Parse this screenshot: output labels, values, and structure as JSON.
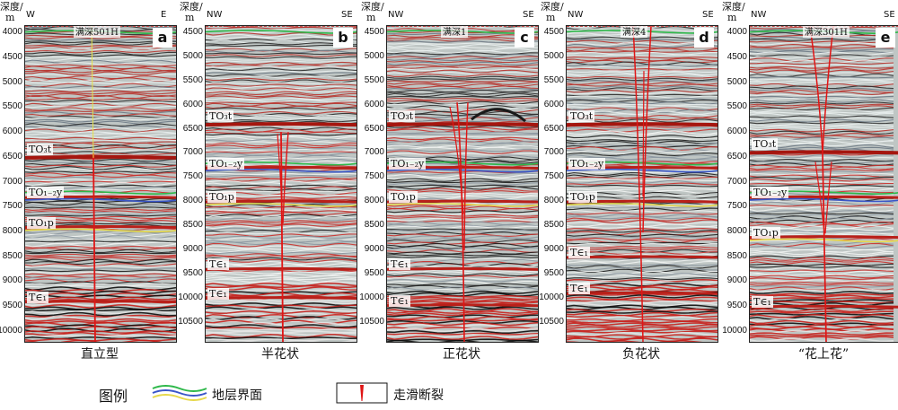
{
  "legend": {
    "title": "图例",
    "horizon_label": "地层界面",
    "fault_label": "走滑断裂",
    "colors": {
      "green": "#2eb84a",
      "blue": "#3a56c8",
      "yellow": "#e6d84a",
      "fault": "#e01515"
    }
  },
  "panels": [
    {
      "letter": "a",
      "dir_left": "W",
      "dir_right": "E",
      "well": "满深501H",
      "caption": "直立型",
      "y_title": "深度/",
      "y_unit": "m",
      "ticks": [
        "4000",
        "4500",
        "5000",
        "5500",
        "6000",
        "6500",
        "7000",
        "7500",
        "8000",
        "8500",
        "9000",
        "9500",
        "10000"
      ],
      "depth_range": [
        3850,
        10200
      ],
      "horizons": [
        {
          "label": "TO₃t",
          "depth": 6500
        },
        {
          "label": "TO₁₋₂y",
          "depth": 7300
        },
        {
          "label": "TO₁p",
          "depth": 7900
        },
        {
          "label": "T∈₁",
          "depth": 9400
        }
      ],
      "style": "vertical"
    },
    {
      "letter": "b",
      "dir_left": "NW",
      "dir_right": "SE",
      "well": "",
      "caption": "半花状",
      "y_title": "深度/",
      "y_unit": "m",
      "ticks": [
        "4500",
        "5000",
        "5500",
        "6000",
        "6500",
        "7000",
        "7500",
        "8000",
        "8500",
        "9000",
        "9500",
        "10000",
        "10500"
      ],
      "depth_range": [
        4350,
        10900
      ],
      "horizons": [
        {
          "label": "TO₃t",
          "depth": 6400
        },
        {
          "label": "TO₁₋₂y",
          "depth": 7300
        },
        {
          "label": "TO₁p",
          "depth": 8000
        },
        {
          "label": "T∈₁",
          "depth": 9400
        },
        {
          "label": "T∈₁",
          "depth": 10000
        }
      ],
      "style": "half-flower"
    },
    {
      "letter": "c",
      "dir_left": "NW",
      "dir_right": "SE",
      "well": "满深1",
      "caption": "正花状",
      "y_title": "深度/",
      "y_unit": "m",
      "ticks": [
        "4500",
        "5000",
        "5500",
        "6000",
        "6500",
        "7000",
        "7500",
        "8000",
        "8500",
        "9000",
        "9500",
        "10000",
        "10500"
      ],
      "depth_range": [
        4350,
        10900
      ],
      "horizons": [
        {
          "label": "TO₃t",
          "depth": 6400
        },
        {
          "label": "TO₁₋₂y",
          "depth": 7300
        },
        {
          "label": "TO₁p",
          "depth": 8000
        },
        {
          "label": "T∈₁",
          "depth": 9400
        },
        {
          "label": "T∈₁",
          "depth": 10150
        }
      ],
      "style": "positive-flower"
    },
    {
      "letter": "d",
      "dir_left": "NW",
      "dir_right": "SE",
      "well": "满深4",
      "caption": "负花状",
      "y_title": "深度/",
      "y_unit": "m",
      "ticks": [
        "4500",
        "5000",
        "5500",
        "6000",
        "6500",
        "7000",
        "7500",
        "8000",
        "8500",
        "9000",
        "9500",
        "10000",
        "10500"
      ],
      "depth_range": [
        4350,
        10900
      ],
      "horizons": [
        {
          "label": "TO₃t",
          "depth": 6400
        },
        {
          "label": "TO₁₋₂y",
          "depth": 7300
        },
        {
          "label": "TO₁p",
          "depth": 8000
        },
        {
          "label": "T∈₁",
          "depth": 9150
        },
        {
          "label": "T∈₁",
          "depth": 9900
        }
      ],
      "style": "negative-flower"
    },
    {
      "letter": "e",
      "dir_left": "NW",
      "dir_right": "SE",
      "well": "满深301H",
      "caption": "“花上花”",
      "y_title": "深度/",
      "y_unit": "m",
      "ticks": [
        "4000",
        "4500",
        "5000",
        "5500",
        "6000",
        "6500",
        "7000",
        "7500",
        "8000",
        "8500",
        "9000",
        "9500",
        "10000"
      ],
      "depth_range": [
        3850,
        10200
      ],
      "horizons": [
        {
          "label": "TO₃t",
          "depth": 6400
        },
        {
          "label": "TO₁₋₂y",
          "depth": 7300
        },
        {
          "label": "TO₁p",
          "depth": 8100
        },
        {
          "label": "T∈₁",
          "depth": 9500
        }
      ],
      "style": "flower-on-flower"
    }
  ]
}
